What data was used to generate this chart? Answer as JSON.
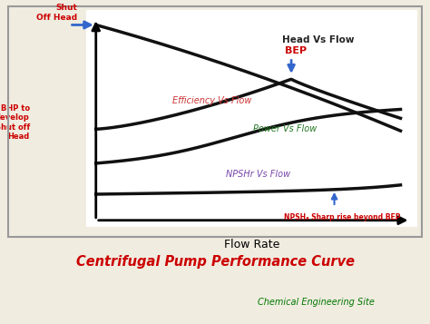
{
  "title": "Centrifugal Pump Performance Curve",
  "subtitle": "Chemical Engineering Site",
  "xlabel": "Flow Rate",
  "bg_color": "#f0ece0",
  "plot_bg": "#ffffff",
  "title_color": "#cc0000",
  "subtitle_color": "#007700",
  "curve_color": "#111111",
  "head_label": "Head Vs Flow",
  "head_label_color": "#222222",
  "efficiency_label": "Efficiency Vs Flow",
  "efficiency_label_color": "#cc3333",
  "power_label": "Power Vs Flow",
  "power_label_color": "#227722",
  "npshr_label": "NPSHr Vs Flow",
  "npshr_label_color": "#7744aa",
  "bep_label": "BEP",
  "bep_label_color": "#cc0000",
  "shut_off_head_label": "Shut\nOff Head",
  "shut_off_head_color": "#cc0000",
  "bhp_label": "BHP to\ndevelop\nShut off\nHead",
  "bhp_color": "#cc0000",
  "npsh_note_color": "#cc0000",
  "arrow_color": "#3366cc"
}
